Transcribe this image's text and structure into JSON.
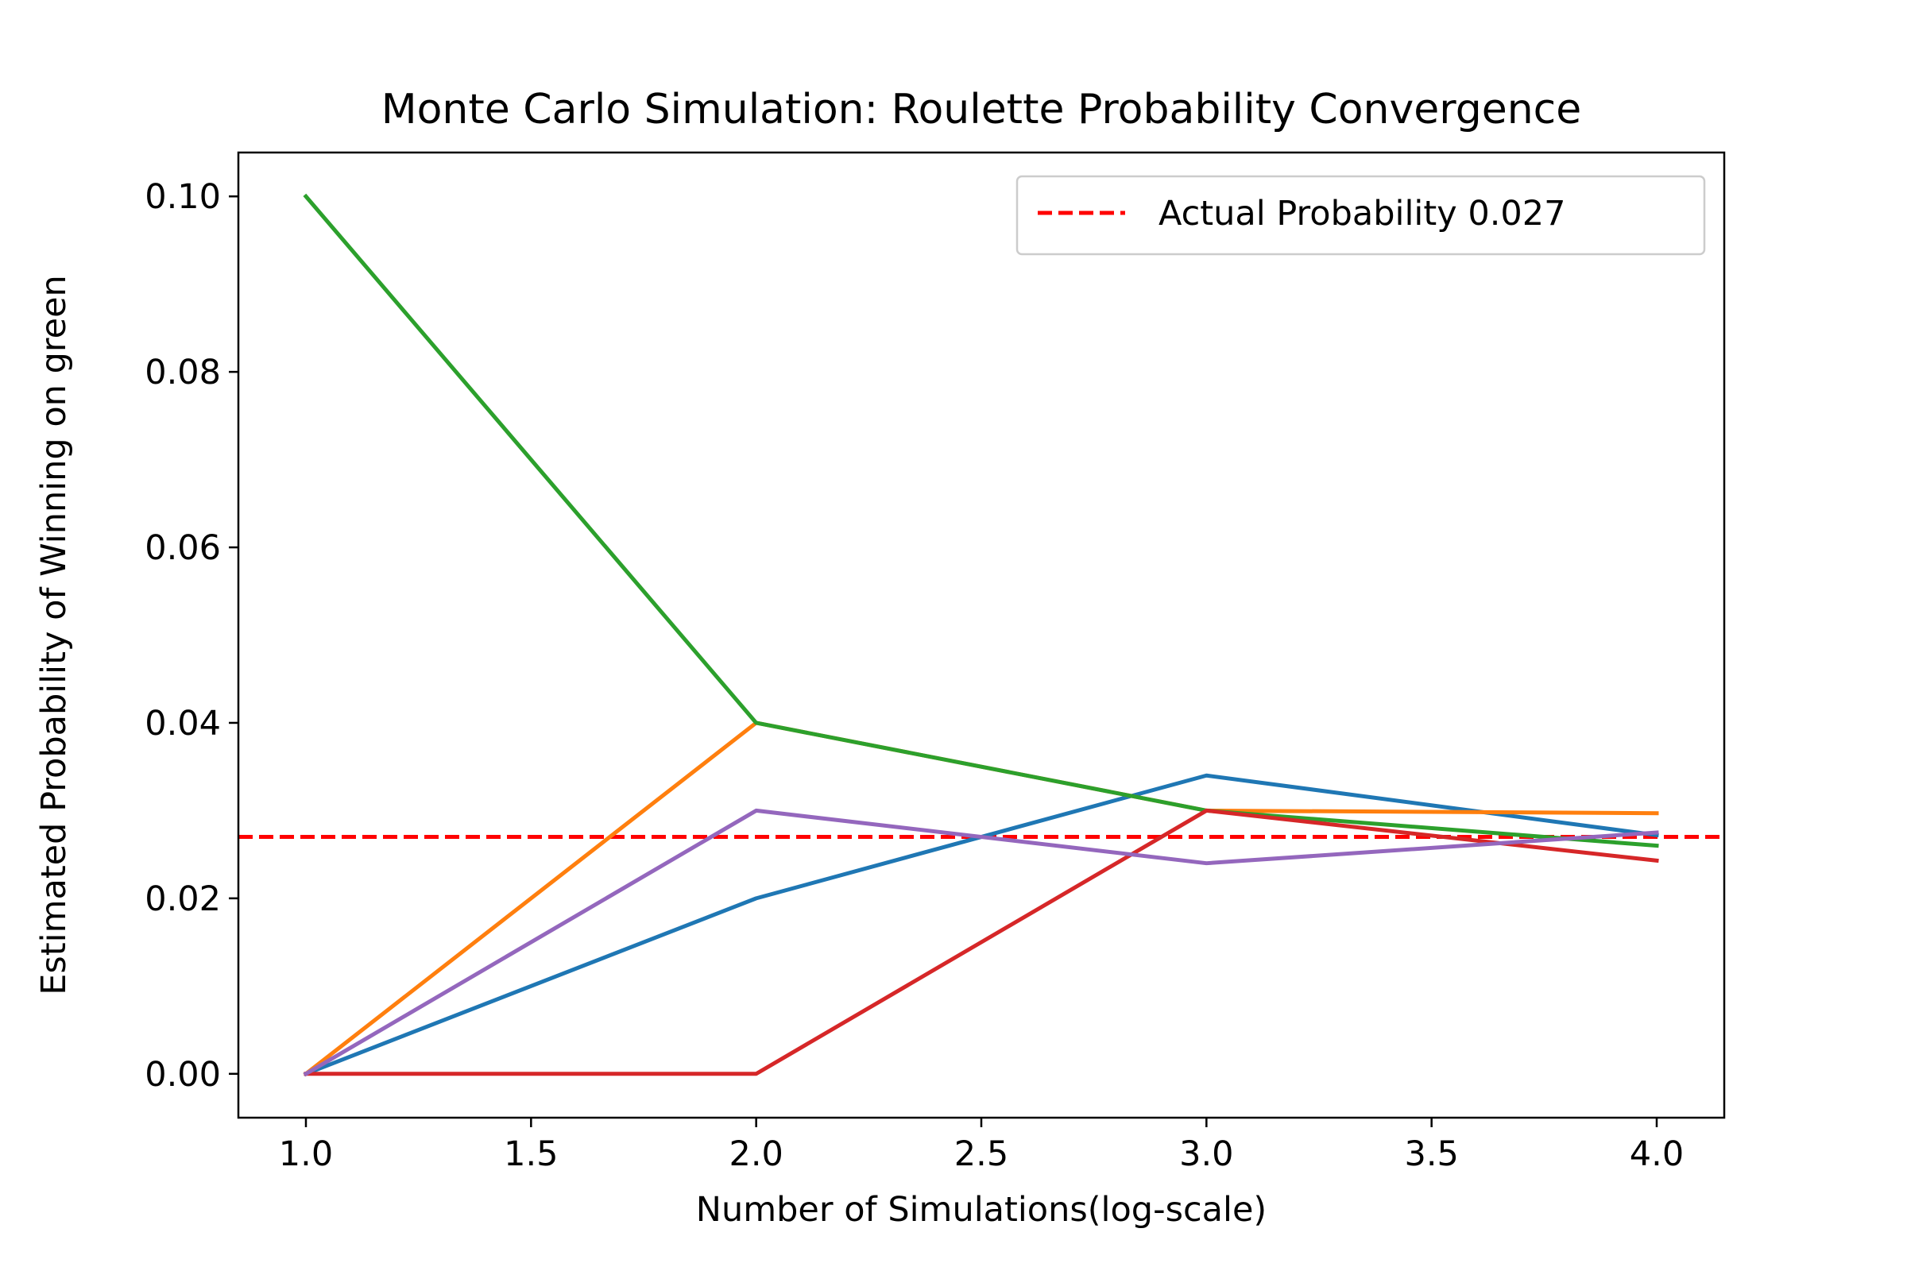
{
  "chart_data": {
    "type": "line",
    "title": "Monte Carlo Simulation: Roulette Probability Convergence",
    "xlabel": "Number of Simulations(log-scale)",
    "ylabel": "Estimated Probability of Winning on green",
    "x": [
      1.0,
      2.0,
      3.0,
      4.0
    ],
    "xlim": [
      0.85,
      4.15
    ],
    "ylim": [
      -0.005,
      0.105
    ],
    "xticks": [
      1.0,
      1.5,
      2.0,
      2.5,
      3.0,
      3.5,
      4.0
    ],
    "xtick_labels": [
      "1.0",
      "1.5",
      "2.0",
      "2.5",
      "3.0",
      "3.5",
      "4.0"
    ],
    "yticks": [
      0.0,
      0.02,
      0.04,
      0.06,
      0.08,
      0.1
    ],
    "ytick_labels": [
      "0.00",
      "0.02",
      "0.04",
      "0.06",
      "0.08",
      "0.10"
    ],
    "grid": false,
    "legend_position": "upper right",
    "series": [
      {
        "color": "#1f77b4",
        "values": [
          0.0,
          0.02,
          0.034,
          0.0272
        ]
      },
      {
        "color": "#ff7f0e",
        "values": [
          0.0,
          0.04,
          0.03,
          0.0297
        ]
      },
      {
        "color": "#2ca02c",
        "values": [
          0.1,
          0.04,
          0.03,
          0.026
        ]
      },
      {
        "color": "#d62728",
        "values": [
          0.0,
          0.0,
          0.03,
          0.0243
        ]
      },
      {
        "color": "#9467bd",
        "values": [
          0.0,
          0.03,
          0.024,
          0.0275
        ]
      }
    ],
    "reference_line": {
      "name": "Actual Probability 0.027",
      "value": 0.027,
      "color": "#ff0000",
      "style": "dashed"
    }
  }
}
